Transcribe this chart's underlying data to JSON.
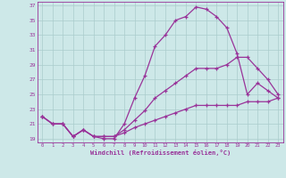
{
  "xlabel": "Windchill (Refroidissement éolien,°C)",
  "background_color": "#cde8e8",
  "grid_color": "#aacccc",
  "line_color": "#993399",
  "xmin": -0.5,
  "xmax": 23.5,
  "ymin": 18.5,
  "ymax": 37.5,
  "yticks": [
    19,
    21,
    23,
    25,
    27,
    29,
    31,
    33,
    35,
    37
  ],
  "xticks": [
    0,
    1,
    2,
    3,
    4,
    5,
    6,
    7,
    8,
    9,
    10,
    11,
    12,
    13,
    14,
    15,
    16,
    17,
    18,
    19,
    20,
    21,
    22,
    23
  ],
  "line1_x": [
    0,
    1,
    2,
    3,
    4,
    5,
    6,
    7,
    8,
    9,
    10,
    11,
    12,
    13,
    14,
    15,
    16,
    17,
    18,
    19,
    20,
    21,
    22,
    23
  ],
  "line1_y": [
    22.0,
    21.0,
    21.0,
    19.3,
    20.2,
    19.3,
    19.0,
    19.0,
    21.0,
    24.5,
    27.5,
    31.5,
    33.0,
    35.0,
    35.5,
    36.8,
    36.5,
    35.5,
    34.0,
    30.5,
    25.0,
    26.5,
    25.5,
    24.5
  ],
  "line2_x": [
    0,
    1,
    2,
    3,
    4,
    5,
    6,
    7,
    8,
    9,
    10,
    11,
    12,
    13,
    14,
    15,
    16,
    17,
    18,
    19,
    20,
    21,
    22,
    23
  ],
  "line2_y": [
    22.0,
    21.0,
    21.0,
    19.3,
    20.2,
    19.3,
    19.3,
    19.3,
    20.2,
    21.5,
    22.8,
    24.5,
    25.5,
    26.5,
    27.5,
    28.5,
    28.5,
    28.5,
    29.0,
    30.0,
    30.0,
    28.5,
    27.0,
    25.0
  ],
  "line3_x": [
    0,
    1,
    2,
    3,
    4,
    5,
    6,
    7,
    8,
    9,
    10,
    11,
    12,
    13,
    14,
    15,
    16,
    17,
    18,
    19,
    20,
    21,
    22,
    23
  ],
  "line3_y": [
    22.0,
    21.0,
    21.0,
    19.3,
    20.2,
    19.3,
    19.3,
    19.3,
    19.8,
    20.5,
    21.0,
    21.5,
    22.0,
    22.5,
    23.0,
    23.5,
    23.5,
    23.5,
    23.5,
    23.5,
    24.0,
    24.0,
    24.0,
    24.5
  ]
}
